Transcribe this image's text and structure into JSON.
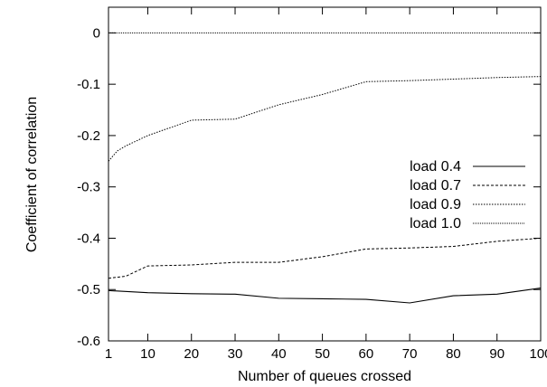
{
  "chart_data": {
    "type": "line",
    "title": "",
    "xlabel": "Number of queues crossed",
    "ylabel": "Coefficient of correlation",
    "xlim": [
      1,
      100
    ],
    "ylim": [
      -0.6,
      0.05
    ],
    "xticks": [
      {
        "value": 1,
        "label": "1"
      },
      {
        "value": 10,
        "label": "10"
      },
      {
        "value": 20,
        "label": "20"
      },
      {
        "value": 30,
        "label": "30"
      },
      {
        "value": 40,
        "label": "40"
      },
      {
        "value": 50,
        "label": "50"
      },
      {
        "value": 60,
        "label": "60"
      },
      {
        "value": 70,
        "label": "70"
      },
      {
        "value": 80,
        "label": "80"
      },
      {
        "value": 90,
        "label": "90"
      },
      {
        "value": 100,
        "label": "100"
      }
    ],
    "yticks": [
      {
        "value": 0,
        "label": "0"
      },
      {
        "value": -0.1,
        "label": "-0.1"
      },
      {
        "value": -0.2,
        "label": "-0.2"
      },
      {
        "value": -0.3,
        "label": "-0.3"
      },
      {
        "value": -0.4,
        "label": "-0.4"
      },
      {
        "value": -0.5,
        "label": "-0.5"
      },
      {
        "value": -0.6,
        "label": "-0.6"
      }
    ],
    "grid": false,
    "legend_position": "right-center",
    "series": [
      {
        "name": "load 0.4",
        "dash": "solid",
        "x": [
          1,
          10,
          20,
          30,
          40,
          50,
          60,
          70,
          80,
          90,
          100
        ],
        "y": [
          -0.502,
          -0.506,
          -0.508,
          -0.509,
          -0.517,
          -0.518,
          -0.519,
          -0.526,
          -0.512,
          -0.509,
          -0.497
        ]
      },
      {
        "name": "load 0.7",
        "dash": "dashed",
        "x": [
          1,
          5,
          10,
          20,
          30,
          40,
          50,
          60,
          70,
          80,
          90,
          100
        ],
        "y": [
          -0.478,
          -0.474,
          -0.454,
          -0.452,
          -0.447,
          -0.447,
          -0.436,
          -0.421,
          -0.419,
          -0.416,
          -0.406,
          -0.4
        ]
      },
      {
        "name": "load 0.9",
        "dash": "dotted",
        "x": [
          1,
          3,
          5,
          10,
          20,
          30,
          40,
          50,
          60,
          70,
          80,
          90,
          100
        ],
        "y": [
          -0.25,
          -0.23,
          -0.22,
          -0.2,
          -0.17,
          -0.168,
          -0.14,
          -0.12,
          -0.095,
          -0.093,
          -0.09,
          -0.087,
          -0.085
        ]
      },
      {
        "name": "load 1.0",
        "dash": "fine-dotted",
        "x": [
          1,
          100
        ],
        "y": [
          0,
          0
        ]
      }
    ]
  }
}
